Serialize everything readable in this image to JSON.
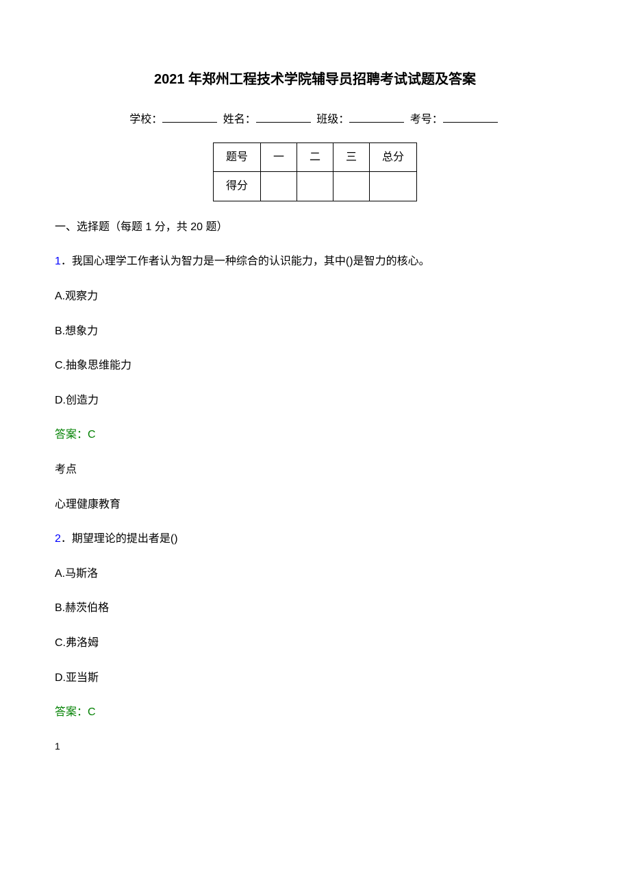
{
  "document": {
    "title": "2021 年郑州工程技术学院辅导员招聘考试试题及答案",
    "student_info": {
      "school_label": "学校：",
      "name_label": "姓名：",
      "class_label": "班级：",
      "exam_id_label": "考号："
    },
    "score_table": {
      "header_row": [
        "题号",
        "一",
        "二",
        "三",
        "总分"
      ],
      "score_row": [
        "得分",
        "",
        "",
        "",
        ""
      ]
    },
    "section_1": {
      "header": "一、选择题（每题 1 分，共 20 题）"
    },
    "questions": [
      {
        "number": "1",
        "text": "．我国心理学工作者认为智力是一种综合的认识能力，其中()是智力的核心。",
        "options": {
          "A": "A.观察力",
          "B": "B.想象力",
          "C": "C.抽象思维能力",
          "D": "D.创造力"
        },
        "answer": "答案：C",
        "topic_label": "考点",
        "topic_value": "心理健康教育"
      },
      {
        "number": "2",
        "text": "．期望理论的提出者是()",
        "options": {
          "A": "A.马斯洛",
          "B": "B.赫茨伯格",
          "C": "C.弗洛姆",
          "D": "D.亚当斯"
        },
        "answer": "答案：C",
        "topic_label": "",
        "topic_value": ""
      }
    ],
    "page_number": "1"
  },
  "colors": {
    "text": "#000000",
    "question_number": "#0000ff",
    "answer": "#008000",
    "background": "#ffffff",
    "border": "#000000"
  },
  "typography": {
    "title_fontsize": 20,
    "body_fontsize": 16,
    "title_weight": "bold",
    "font_family": "Microsoft YaHei"
  }
}
